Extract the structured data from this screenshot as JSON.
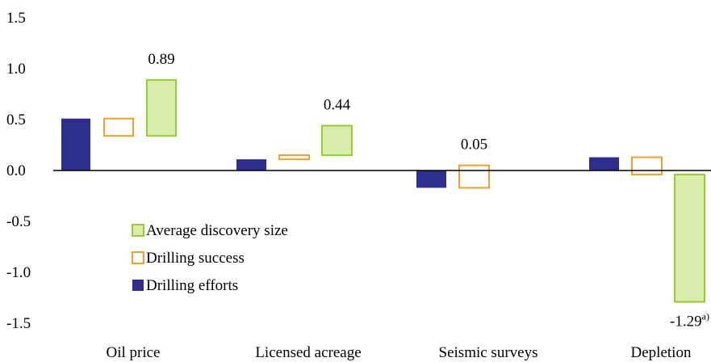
{
  "chart_data": {
    "type": "bar",
    "subtype": "waterfall-decomposition",
    "title": "",
    "xlabel": "",
    "ylabel": "",
    "ylim": [
      -1.5,
      1.5
    ],
    "yticks": [
      "1.5",
      "1.0",
      "0.5",
      "0.0",
      "-0.5",
      "-1.0",
      "-1.5"
    ],
    "grid": false,
    "legend_position": "left-center",
    "categories": [
      "Oil price",
      "Licensed acreage",
      "Seismic surveys",
      "Depletion"
    ],
    "series": [
      {
        "name": "Drilling efforts",
        "color": "#2e2e8f",
        "fill": "#2e2e8f",
        "style": "filled",
        "start": [
          0.0,
          0.0,
          0.0,
          0.0
        ],
        "end": [
          0.51,
          0.11,
          -0.17,
          0.13
        ]
      },
      {
        "name": "Drilling success",
        "color": "#f0a030",
        "fill": "#ffffff",
        "style": "outline",
        "start": [
          0.51,
          0.11,
          -0.17,
          0.13
        ],
        "end": [
          0.34,
          0.15,
          0.05,
          -0.04
        ]
      },
      {
        "name": "Average discovery size",
        "color": "#99cc33",
        "fill": "#d9edaa",
        "style": "filled-outline",
        "start": [
          0.34,
          0.15,
          null,
          -0.04
        ],
        "end": [
          0.89,
          0.44,
          null,
          -1.29
        ]
      }
    ],
    "data_labels": [
      {
        "category": "Oil price",
        "series": "Average discovery size",
        "text": "0.89",
        "sup": ""
      },
      {
        "category": "Licensed acreage",
        "series": "Average discovery size",
        "text": "0.44",
        "sup": ""
      },
      {
        "category": "Seismic surveys",
        "series": "Drilling success",
        "text": "0.05",
        "sup": ""
      },
      {
        "category": "Depletion",
        "series": "Average discovery size",
        "text": "-1.29",
        "sup": "a)"
      }
    ]
  }
}
